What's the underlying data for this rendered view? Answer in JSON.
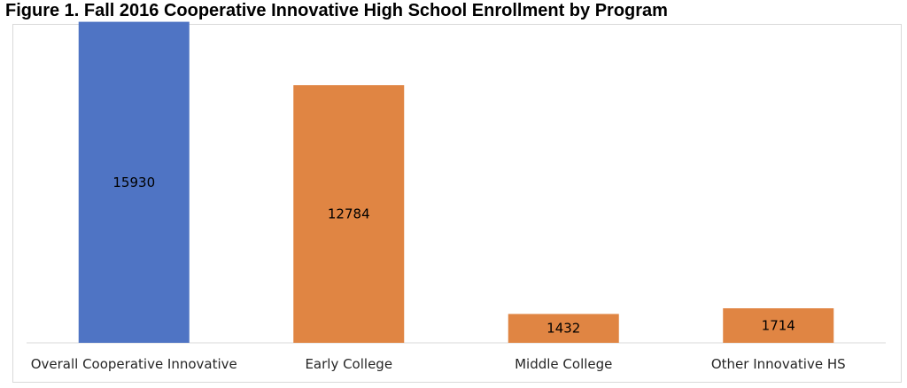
{
  "chart_data": {
    "type": "bar",
    "title": "Figure 1. Fall 2016 Cooperative Innovative High School Enrollment by Program",
    "categories": [
      "Overall Cooperative Innovative",
      "Early College",
      "Middle College",
      "Other Innovative HS"
    ],
    "values": [
      15930,
      12784,
      1432,
      1714
    ],
    "colors": [
      "#4f74c4",
      "#e08543",
      "#e08543",
      "#e08543"
    ],
    "xlabel": "",
    "ylabel": "",
    "ylim": [
      0,
      16000
    ],
    "grid": false,
    "legend": "none",
    "data_labels": "inside-center"
  }
}
